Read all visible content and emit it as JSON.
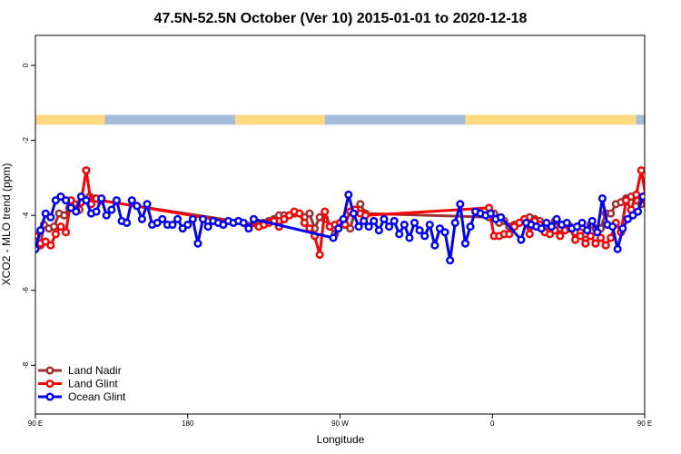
{
  "chart_data": {
    "type": "line",
    "title": "47.5N-52.5N October (Ver 10)   2015-01-01 to 2020-12-18",
    "xlabel": "Longitude",
    "ylabel": "XCO2 - MLO trend (ppm)",
    "xlim": [
      90,
      450
    ],
    "ylim": [
      -9.3,
      0.8
    ],
    "x_ticks": [
      {
        "value": 90,
        "label": "90 E"
      },
      {
        "value": 180,
        "label": "180"
      },
      {
        "value": 270,
        "label": "90 W"
      },
      {
        "value": 360,
        "label": "0"
      },
      {
        "value": 450,
        "label": "90 E"
      },
      {
        "value": 540,
        "label": "180"
      }
    ],
    "y_ticks": [
      {
        "value": 0,
        "label": "0"
      },
      {
        "value": -2,
        "label": "-2"
      },
      {
        "value": -4,
        "label": "-4"
      },
      {
        "value": -6,
        "label": "-6"
      },
      {
        "value": -8,
        "label": "-8"
      }
    ],
    "legend_position": "bottom-left",
    "grid": false,
    "land_strip": {
      "y_range": [
        -1.58,
        -1.32
      ],
      "land_color": "#FFD97F",
      "ocean_color": "#A5BDDD",
      "land_segments": [
        [
          90,
          131
        ],
        [
          208,
          261
        ],
        [
          344,
          445
        ]
      ]
    },
    "series": [
      {
        "name": "Land Nadir",
        "color": "#A0302F",
        "x": [
          90,
          93,
          95,
          98,
          101,
          104,
          107,
          110,
          113,
          116,
          119,
          122,
          125,
          128,
          222,
          225,
          228,
          231,
          234,
          237,
          240,
          243,
          246,
          249,
          252,
          255,
          258,
          261,
          264,
          267,
          270,
          273,
          276,
          279,
          282,
          285,
          358,
          361,
          364,
          367,
          370,
          373,
          376,
          379,
          382,
          385,
          388,
          391,
          394,
          397,
          400,
          403,
          406,
          409,
          412,
          415,
          418,
          421,
          424,
          427,
          430,
          433,
          436,
          439,
          442,
          445,
          448,
          451,
          454,
          457,
          460,
          463,
          466,
          469
        ],
        "y": [
          -4.7,
          -4.8,
          -4.25,
          -4.35,
          -4.3,
          -3.95,
          -4.0,
          -3.8,
          -3.7,
          -3.85,
          -3.6,
          -3.5,
          -3.55,
          -3.6,
          -4.25,
          -4.2,
          -4.15,
          -4.1,
          -4.0,
          -4.0,
          -4.0,
          -3.95,
          -3.95,
          -4.05,
          -3.95,
          -4.35,
          -4.05,
          -4.1,
          -4.3,
          -4.5,
          -4.2,
          -4.25,
          -4.35,
          -3.85,
          -3.7,
          -3.95,
          -4.05,
          -3.95,
          -4.2,
          -4.15,
          -4.3,
          -4.25,
          -4.2,
          -4.1,
          -4.05,
          -4.1,
          -4.15,
          -4.45,
          -4.35,
          -4.15,
          -4.35,
          -4.25,
          -4.3,
          -4.45,
          -4.45,
          -4.5,
          -4.25,
          -4.35,
          -4.35,
          -3.95,
          -3.95,
          -3.7,
          -3.65,
          -3.55,
          -3.5,
          -3.6,
          -3.7,
          -3.65,
          -3.75,
          -3.8,
          -3.55,
          -3.6,
          -3.85,
          -3.7
        ]
      },
      {
        "name": "Land Glint",
        "color": "#FF0000",
        "x": [
          90,
          93,
          96,
          99,
          102,
          105,
          108,
          111,
          114,
          117,
          120,
          123,
          126,
          129,
          222,
          225,
          228,
          231,
          234,
          237,
          240,
          243,
          246,
          249,
          252,
          255,
          258,
          261,
          264,
          267,
          270,
          273,
          276,
          279,
          282,
          285,
          358,
          361,
          364,
          367,
          370,
          373,
          376,
          379,
          382,
          385,
          388,
          391,
          394,
          397,
          400,
          403,
          406,
          409,
          412,
          415,
          418,
          421,
          424,
          427,
          430,
          433,
          436,
          439,
          442,
          445,
          448,
          451,
          454,
          457,
          460,
          463,
          466,
          469
        ],
        "y": [
          -4.55,
          -4.75,
          -4.7,
          -4.8,
          -4.5,
          -4.3,
          -4.45,
          -3.6,
          -3.85,
          -3.65,
          -2.8,
          -3.7,
          -3.55,
          -3.6,
          -4.3,
          -4.25,
          -4.2,
          -4.15,
          -4.3,
          -4.1,
          -4.0,
          -3.9,
          -3.95,
          -4.2,
          -4.35,
          -4.55,
          -5.05,
          -3.9,
          -4.3,
          -4.25,
          -4.2,
          -4.25,
          -3.9,
          -3.85,
          -3.95,
          -4.0,
          -3.8,
          -4.55,
          -4.55,
          -4.5,
          -4.5,
          -4.3,
          -4.2,
          -4.1,
          -4.5,
          -4.15,
          -4.25,
          -4.45,
          -4.5,
          -4.4,
          -4.55,
          -4.4,
          -4.35,
          -4.65,
          -4.55,
          -4.75,
          -4.55,
          -4.75,
          -4.6,
          -4.8,
          -4.6,
          -4.2,
          -4.45,
          -3.6,
          -3.85,
          -3.45,
          -2.8,
          -3.6,
          -3.7,
          -3.55,
          -3.6,
          -3.85,
          -3.7,
          -3.65
        ]
      },
      {
        "name": "Ocean Glint",
        "color": "#0000FF",
        "x": [
          90,
          93,
          96,
          99,
          102,
          105,
          108,
          111,
          114,
          117,
          120,
          123,
          126,
          129,
          132,
          135,
          138,
          141,
          144,
          147,
          150,
          153,
          156,
          159,
          162,
          165,
          168,
          171,
          174,
          177,
          180,
          183,
          186,
          189,
          192,
          195,
          198,
          201,
          204,
          207,
          210,
          213,
          216,
          219,
          266,
          269,
          272,
          275,
          278,
          281,
          284,
          287,
          290,
          293,
          296,
          299,
          302,
          305,
          308,
          311,
          314,
          317,
          320,
          323,
          326,
          329,
          332,
          335,
          338,
          341,
          344,
          347,
          350,
          353,
          356,
          359,
          362,
          365,
          377,
          380,
          383,
          386,
          389,
          392,
          395,
          398,
          401,
          404,
          407,
          410,
          413,
          416,
          419,
          422,
          425,
          428,
          431,
          434,
          437,
          440,
          443,
          446,
          449,
          452,
          455,
          458,
          461,
          464,
          467,
          470
        ],
        "y": [
          -4.9,
          -4.4,
          -3.95,
          -4.05,
          -3.6,
          -3.5,
          -3.6,
          -3.8,
          -3.9,
          -3.5,
          -3.6,
          -3.95,
          -3.9,
          -3.55,
          -4.0,
          -3.85,
          -3.6,
          -4.15,
          -4.2,
          -3.6,
          -3.75,
          -4.1,
          -3.7,
          -4.25,
          -4.2,
          -4.1,
          -4.25,
          -4.25,
          -4.1,
          -4.35,
          -4.25,
          -4.1,
          -4.75,
          -4.1,
          -4.3,
          -4.15,
          -4.2,
          -4.25,
          -4.15,
          -4.2,
          -4.15,
          -4.2,
          -4.35,
          -4.1,
          -4.6,
          -4.35,
          -4.1,
          -3.45,
          -3.95,
          -4.3,
          -4.15,
          -4.3,
          -4.15,
          -4.4,
          -4.1,
          -4.3,
          -4.15,
          -4.5,
          -4.25,
          -4.6,
          -4.2,
          -4.4,
          -4.55,
          -4.25,
          -4.8,
          -4.35,
          -4.45,
          -5.2,
          -4.2,
          -3.7,
          -4.75,
          -4.3,
          -3.9,
          -3.95,
          -4.0,
          -3.95,
          -4.1,
          -4.05,
          -4.65,
          -4.2,
          -4.25,
          -4.3,
          -4.35,
          -4.2,
          -4.3,
          -4.1,
          -4.25,
          -4.2,
          -4.35,
          -4.3,
          -4.2,
          -4.4,
          -4.15,
          -4.45,
          -3.55,
          -4.25,
          -4.3,
          -4.9,
          -4.35,
          -4.1,
          -4.0,
          -3.9,
          -3.5,
          -3.55,
          -3.95,
          -3.9,
          -3.6,
          -4.15,
          -4.2,
          -3.6
        ]
      }
    ]
  }
}
